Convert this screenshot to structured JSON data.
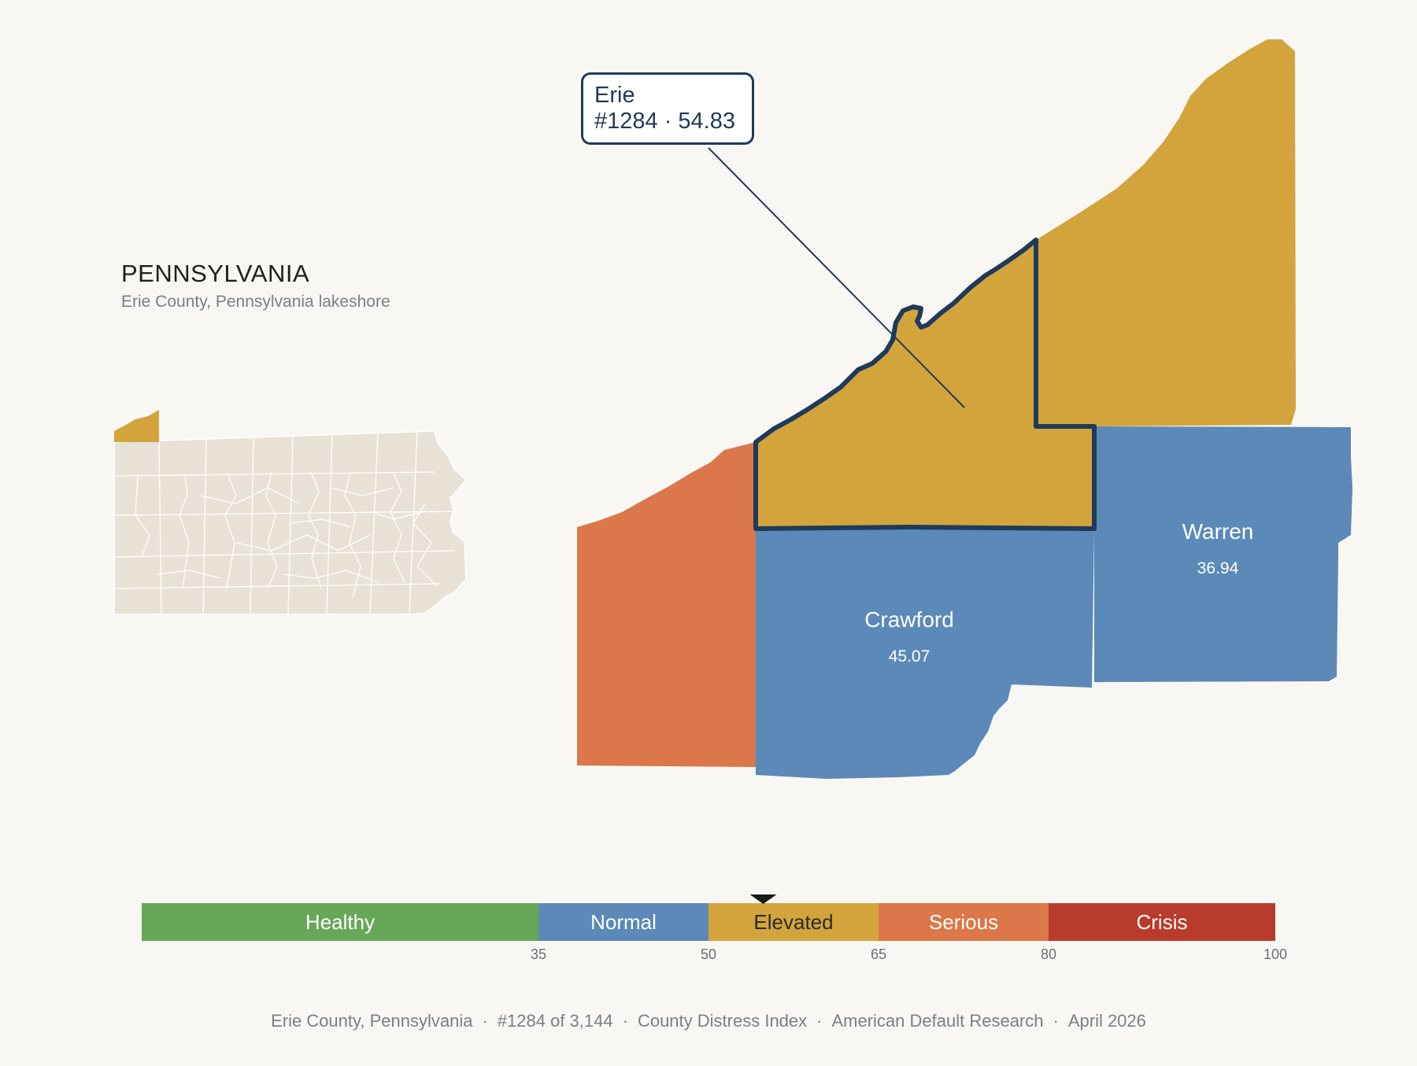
{
  "state": {
    "title": "PENNSYLVANIA",
    "subtitle": "Erie County, Pennsylvania lakeshore"
  },
  "callout": {
    "county": "Erie",
    "detail": "#1284 · 54.83"
  },
  "counties": [
    {
      "name": "Erie",
      "score": 54.83,
      "band": "Elevated",
      "highlighted": true
    },
    {
      "name": "Crawford",
      "score_label": "45.07",
      "band": "Normal"
    },
    {
      "name": "Warren",
      "score_label": "36.94",
      "band": "Normal"
    }
  ],
  "scale": {
    "bands": [
      {
        "label": "Healthy",
        "from": 0,
        "to": 35,
        "color": "#67a758"
      },
      {
        "label": "Normal",
        "from": 35,
        "to": 50,
        "color": "#5b89b8"
      },
      {
        "label": "Elevated",
        "from": 50,
        "to": 65,
        "color": "#d3a43c"
      },
      {
        "label": "Serious",
        "from": 65,
        "to": 80,
        "color": "#db7748"
      },
      {
        "label": "Crisis",
        "from": 80,
        "to": 100,
        "color": "#b93b2c"
      }
    ],
    "ticks": [
      "35",
      "50",
      "65",
      "80",
      "100"
    ],
    "marker_value": 54.83
  },
  "colors": {
    "elevated": "#d3a43c",
    "normal": "#5b89b8",
    "serious": "#db7748",
    "highlight_outline": "#1f3a5a",
    "state_fill": "#e8e2d6",
    "background": "#f9f7f3"
  },
  "footer": {
    "items": [
      "Erie County, Pennsylvania",
      "#1284 of 3,144",
      "County Distress Index",
      "American Default Research",
      "April 2026"
    ]
  }
}
